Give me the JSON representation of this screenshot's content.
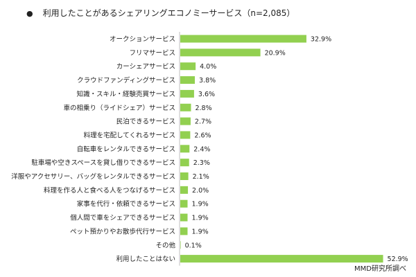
{
  "bullet": "●",
  "source": "MMD研究所調べ",
  "colors": {
    "bar": "#92d050",
    "axis": "#bfbfbf",
    "text": "#222222"
  },
  "chart_data": {
    "type": "bar",
    "orientation": "horizontal",
    "title": "利用したことがあるシェアリングエコノミーサービス（n=2,085）",
    "xlabel": "",
    "ylabel": "",
    "xlim": [
      0,
      55
    ],
    "grid": false,
    "categories": [
      "オークションサービス",
      "フリマサービス",
      "カーシェアサービス",
      "クラウドファンディングサービス",
      "知識・スキル・経験売買サービス",
      "車の相乗り（ライドシェア）サービス",
      "民泊できるサービス",
      "料理を宅配してくれるサービス",
      "自転車をレンタルできるサービス",
      "駐車場や空きスペースを貸し借りできるサービス",
      "洋服やアクセサリー、バッグをレンタルできるサービス",
      "料理を作る人と食べる人をつなげるサービス",
      "家事を代行・依頼できるサービス",
      "個人間で車をシェアできるサービス",
      "ペット預かりやお散歩代行サービス",
      "その他",
      "利用したことはない"
    ],
    "values": [
      32.9,
      20.9,
      4.0,
      3.8,
      3.6,
      2.8,
      2.7,
      2.6,
      2.4,
      2.3,
      2.1,
      2.0,
      1.9,
      1.9,
      1.9,
      0.1,
      52.9
    ],
    "value_labels": [
      "32.9%",
      "20.9%",
      "4.0%",
      "3.8%",
      "3.6%",
      "2.8%",
      "2.7%",
      "2.6%",
      "2.4%",
      "2.3%",
      "2.1%",
      "2.0%",
      "1.9%",
      "1.9%",
      "1.9%",
      "0.1%",
      "52.9%"
    ]
  }
}
